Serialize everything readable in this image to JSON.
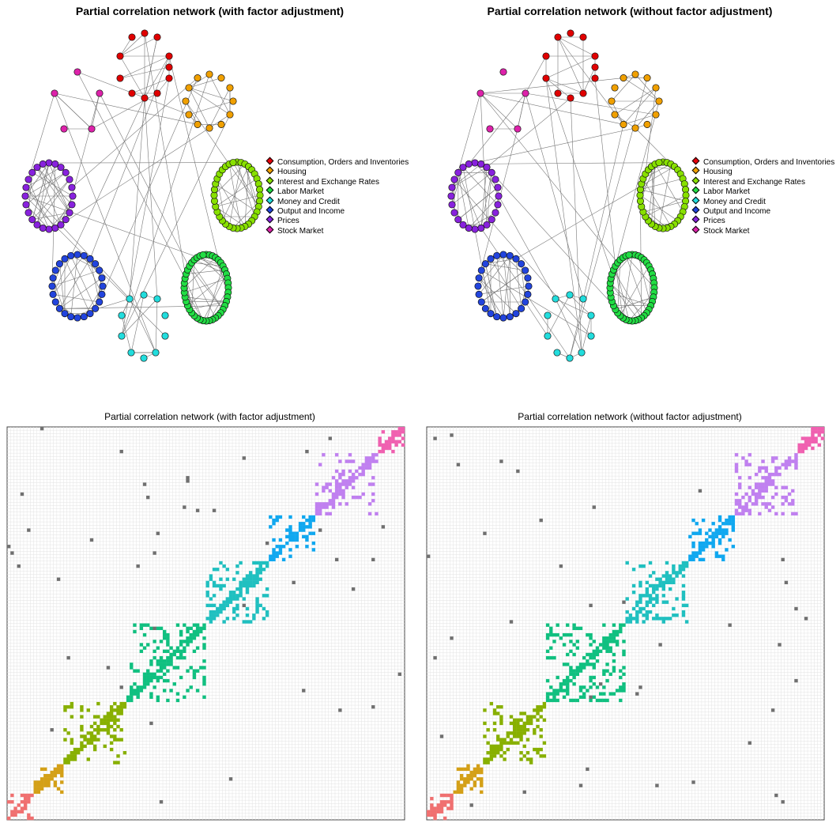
{
  "legend": {
    "items": [
      {
        "label": "Consumption, Orders and Inventories",
        "color": "#e8000b"
      },
      {
        "label": "Housing",
        "color": "#f0a000"
      },
      {
        "label": "Interest and Exchange Rates",
        "color": "#88e000"
      },
      {
        "label": "Labor Market",
        "color": "#22dd44"
      },
      {
        "label": "Money and Credit",
        "color": "#22dddd"
      },
      {
        "label": "Output and Income",
        "color": "#2244dd"
      },
      {
        "label": "Prices",
        "color": "#8822dd"
      },
      {
        "label": "Stock Market",
        "color": "#dd22aa"
      }
    ]
  },
  "chart_data": [
    {
      "type": "network",
      "title": "Partial correlation network (with factor adjustment)",
      "groups_ref": "legend.items"
    },
    {
      "type": "network",
      "title": "Partial correlation network (without factor adjustment)",
      "groups_ref": "legend.items"
    },
    {
      "type": "heatmap",
      "title": "Partial correlation network  (with factor adjustment)",
      "block_colors": [
        "#f07070",
        "#d4a017",
        "#88b000",
        "#10c080",
        "#20c0c0",
        "#10a8f0",
        "#c080f0",
        "#f060b0"
      ],
      "offblock_color": "#707070"
    },
    {
      "type": "heatmap",
      "title": "Partial correlation network  (without factor adjustment)",
      "block_colors": [
        "#f07070",
        "#d4a017",
        "#88b000",
        "#10c080",
        "#20c0c0",
        "#10a8f0",
        "#c080f0",
        "#f060b0"
      ],
      "offblock_color": "#707070"
    }
  ]
}
